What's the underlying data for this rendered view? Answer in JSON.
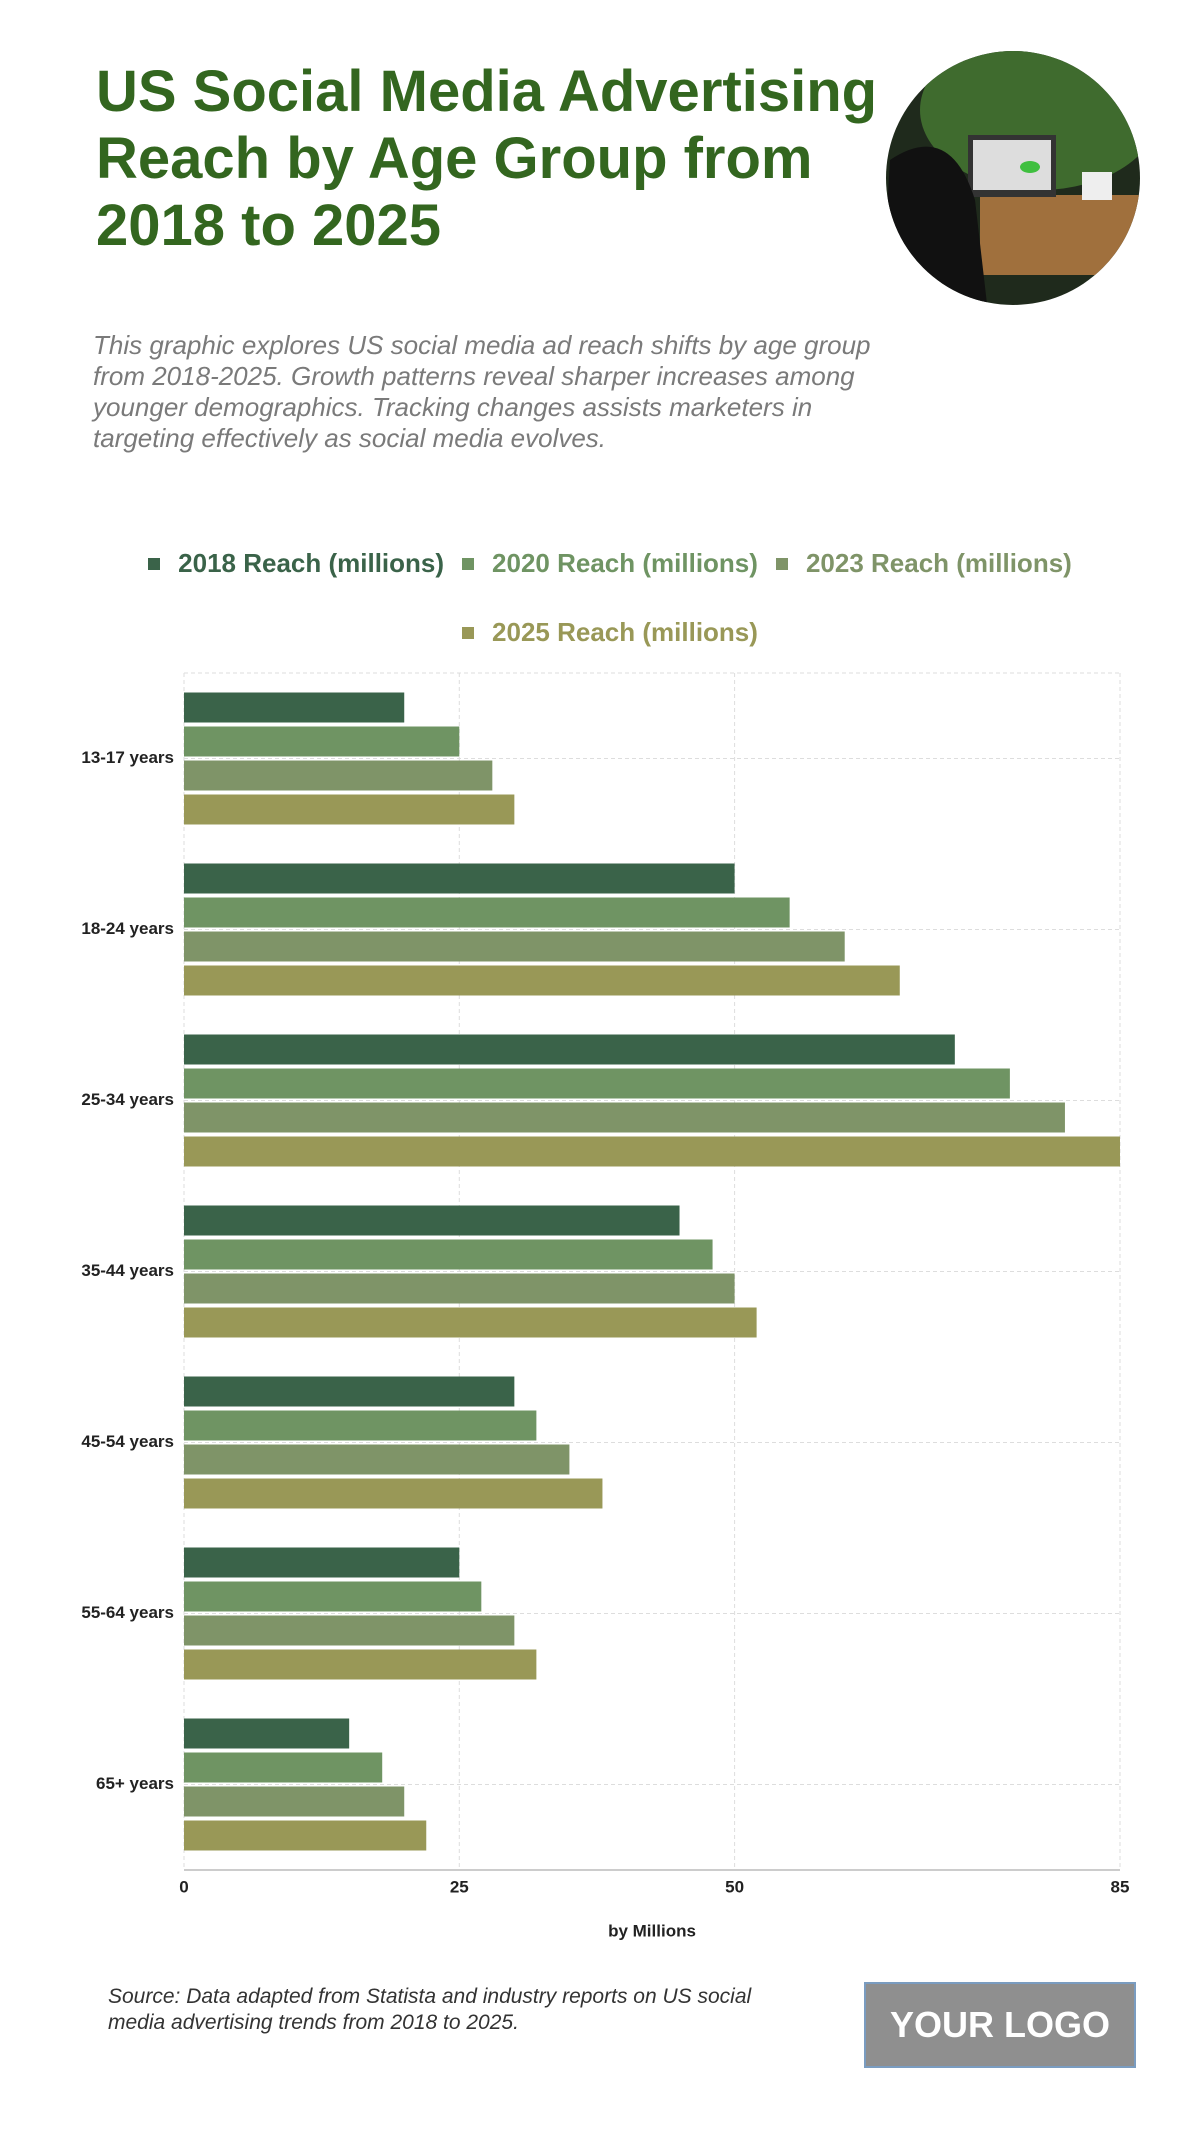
{
  "chart_data": {
    "type": "bar",
    "orientation": "horizontal",
    "title": "US Social Media Advertising Reach by Age Group from 2018 to 2025",
    "subtitle": "This graphic explores US social media ad reach shifts by age group from 2018-2025. Growth patterns reveal sharper increases among younger demographics. Tracking changes assists marketers in targeting effectively as social media evolves.",
    "categories": [
      "13-17 years",
      "18-24 years",
      "25-34 years",
      "35-44 years",
      "45-54 years",
      "55-64 years",
      "65+ years"
    ],
    "series": [
      {
        "name": "2018 Reach (millions)",
        "color": "#3a6349",
        "values": [
          20,
          50,
          70,
          45,
          30,
          25,
          15
        ]
      },
      {
        "name": "2020 Reach (millions)",
        "color": "#6f9463",
        "values": [
          25,
          55,
          75,
          48,
          32,
          27,
          18
        ]
      },
      {
        "name": "2023 Reach (millions)",
        "color": "#7f9468",
        "values": [
          28,
          60,
          80,
          50,
          35,
          30,
          20
        ]
      },
      {
        "name": "2025 Reach (millions)",
        "color": "#999857",
        "values": [
          30,
          65,
          85,
          52,
          38,
          32,
          22
        ]
      }
    ],
    "xlabel": "by Millions",
    "xlim": [
      0,
      85
    ],
    "xticks": [
      0,
      25,
      50,
      85
    ],
    "grid": true,
    "source": "Source: Data adapted from Statista and industry reports on US social media advertising trends from 2018 to 2025.",
    "logo": "YOUR LOGO"
  }
}
